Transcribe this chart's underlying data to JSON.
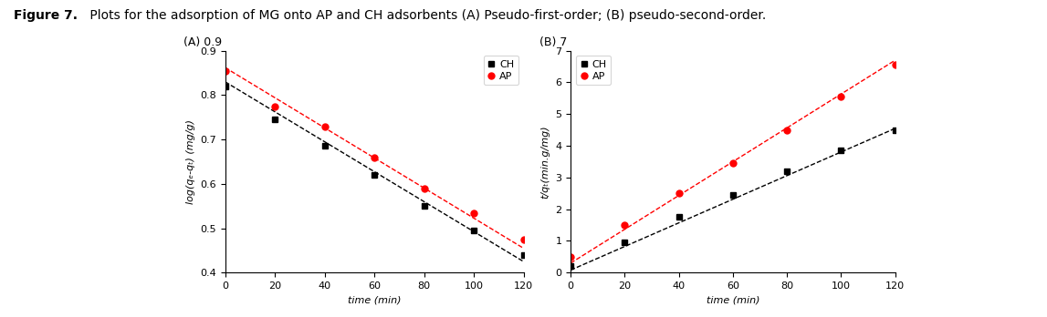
{
  "title_bold": "Figure 7.",
  "title_normal": " Plots for the adsorption of MG onto AP and CH adsorbents (A) Pseudo-first-order; (B) pseudo-second-order.",
  "plot_A": {
    "corner_label": "(A) 0.9",
    "xlabel": "time (min)",
    "ylabel": "log(qₑ-qₜ) (mg/g)",
    "xlim": [
      0,
      120
    ],
    "ylim": [
      0.4,
      0.9
    ],
    "yticks": [
      0.4,
      0.5,
      0.6,
      0.7,
      0.8,
      0.9
    ],
    "xticks": [
      0,
      20,
      40,
      60,
      80,
      100,
      120
    ],
    "CH_x": [
      0,
      20,
      40,
      60,
      80,
      100,
      120
    ],
    "CH_y": [
      0.82,
      0.745,
      0.685,
      0.62,
      0.55,
      0.495,
      0.44
    ],
    "AP_x": [
      0,
      20,
      40,
      60,
      80,
      100,
      120
    ],
    "AP_y": [
      0.855,
      0.775,
      0.73,
      0.66,
      0.59,
      0.535,
      0.475
    ],
    "CH_fit_x": [
      0,
      120
    ],
    "CH_fit_y": [
      0.83,
      0.425
    ],
    "AP_fit_x": [
      0,
      120
    ],
    "AP_fit_y": [
      0.862,
      0.455
    ]
  },
  "plot_B": {
    "corner_label": "(B) 7",
    "xlabel": "time (min)",
    "ylabel": "t/qₜ(min.g/mg)",
    "xlim": [
      0,
      120
    ],
    "ylim": [
      0,
      7
    ],
    "yticks": [
      0,
      1,
      2,
      3,
      4,
      5,
      6,
      7
    ],
    "xticks": [
      0,
      20,
      40,
      60,
      80,
      100,
      120
    ],
    "CH_x": [
      0,
      20,
      40,
      60,
      80,
      100,
      120
    ],
    "CH_y": [
      0.2,
      0.97,
      1.75,
      2.45,
      3.2,
      3.85,
      4.5
    ],
    "AP_x": [
      0,
      20,
      40,
      60,
      80,
      100,
      120
    ],
    "AP_y": [
      0.5,
      1.5,
      2.5,
      3.45,
      4.5,
      5.55,
      6.55
    ],
    "CH_fit_x": [
      0,
      120
    ],
    "CH_fit_y": [
      0.08,
      4.55
    ],
    "AP_fit_x": [
      0,
      120
    ],
    "AP_fit_y": [
      0.3,
      6.7
    ]
  },
  "CH_color": "#000000",
  "AP_color": "#ff0000",
  "CH_marker": "s",
  "AP_marker": "o",
  "marker_size": 5,
  "line_style": "--",
  "line_width": 1.0,
  "title_fontsize": 10,
  "axis_fontsize": 8,
  "label_fontsize": 8,
  "tick_fontsize": 8
}
